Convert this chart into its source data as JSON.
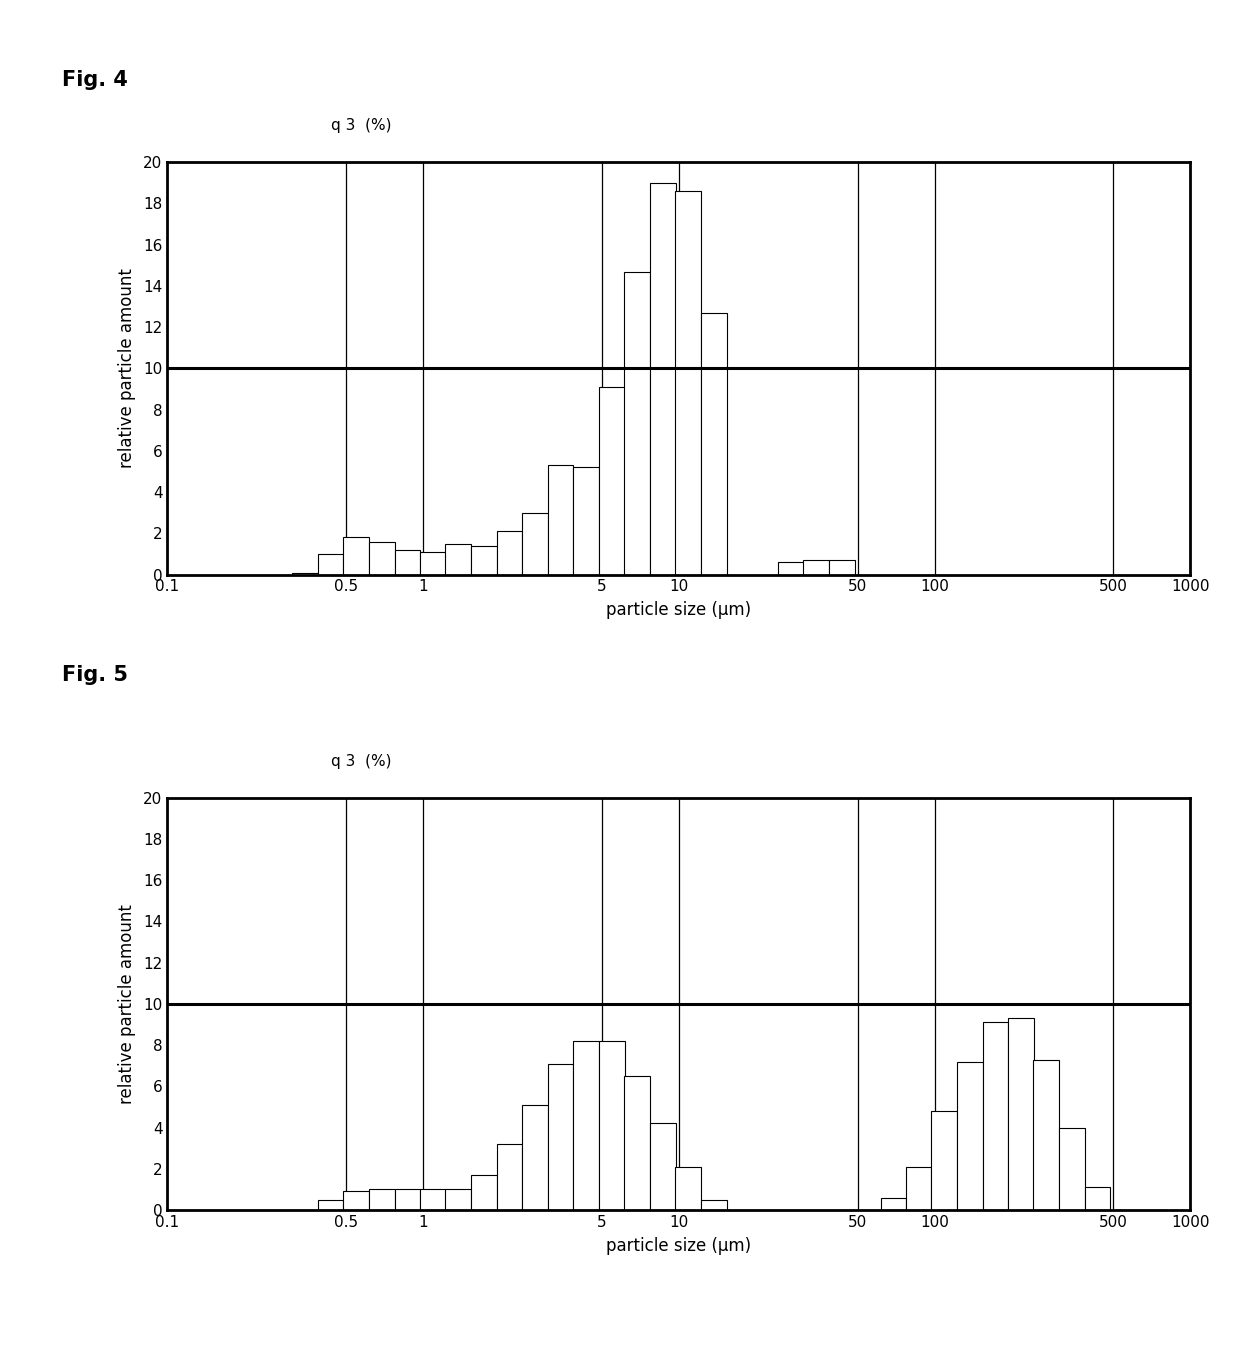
{
  "fig4_label": "Fig. 4",
  "fig5_label": "Fig. 5",
  "ylabel": "relative particle amount",
  "xlabel": "particle size (μm)",
  "y_label_above": "q 3  (%)",
  "ylim": [
    0,
    20
  ],
  "yticks": [
    0,
    2,
    4,
    6,
    8,
    10,
    12,
    14,
    16,
    18,
    20
  ],
  "xtick_labels": [
    "0.1",
    "0.5",
    "1",
    "5",
    "10",
    "50",
    "100",
    "500",
    "1000"
  ],
  "xtick_positions": [
    0.1,
    0.5,
    1.0,
    5.0,
    10.0,
    50.0,
    100.0,
    500.0,
    1000.0
  ],
  "x_grid_lines": [
    0.5,
    1.0,
    5.0,
    10.0,
    50.0,
    100.0,
    500.0
  ],
  "fig4_bars_lefts": [
    0.31,
    0.39,
    0.49,
    0.62,
    0.78,
    0.98,
    1.23,
    1.55,
    1.95,
    2.45,
    3.09,
    3.89,
    4.9,
    6.17,
    7.76,
    9.77,
    12.3,
    24.5,
    30.9,
    38.9
  ],
  "fig4_bars_rights": [
    0.39,
    0.49,
    0.62,
    0.78,
    0.98,
    1.23,
    1.55,
    1.95,
    2.45,
    3.09,
    3.89,
    4.9,
    6.17,
    7.76,
    9.77,
    12.3,
    15.5,
    30.9,
    38.9,
    48.9
  ],
  "fig4_bars_heights": [
    0.1,
    1.0,
    1.8,
    1.6,
    1.2,
    1.1,
    1.5,
    1.4,
    2.1,
    3.0,
    5.3,
    5.2,
    9.1,
    14.7,
    19.0,
    18.6,
    12.7,
    0.6,
    0.7,
    0.7
  ],
  "fig5_bars_lefts": [
    0.31,
    0.39,
    0.49,
    0.62,
    0.78,
    0.98,
    1.23,
    1.55,
    1.95,
    2.45,
    3.09,
    3.89,
    4.9,
    6.17,
    7.76,
    9.77,
    12.3,
    62.3,
    78.0,
    97.7,
    123.0,
    155.0,
    195.0,
    245.0,
    309.0,
    389.0
  ],
  "fig5_bars_rights": [
    0.39,
    0.49,
    0.62,
    0.78,
    0.98,
    1.23,
    1.55,
    1.95,
    2.45,
    3.09,
    3.89,
    4.9,
    6.17,
    7.76,
    9.77,
    12.3,
    15.5,
    78.0,
    97.7,
    123.0,
    155.0,
    195.0,
    245.0,
    309.0,
    389.0,
    489.0
  ],
  "fig5_bars_heights": [
    0.0,
    0.5,
    0.9,
    1.0,
    1.0,
    1.0,
    1.0,
    1.7,
    3.2,
    5.1,
    7.1,
    8.2,
    8.2,
    6.5,
    4.2,
    2.1,
    0.5,
    0.6,
    2.1,
    4.8,
    7.2,
    9.1,
    9.3,
    7.3,
    4.0,
    1.1
  ],
  "background": "#ffffff",
  "bar_facecolor": "#ffffff",
  "bar_edgecolor": "#000000",
  "bar_linewidth": 0.8,
  "spine_linewidth": 2.0,
  "grid_linewidth": 0.9,
  "hgrid_linewidth": 2.2
}
